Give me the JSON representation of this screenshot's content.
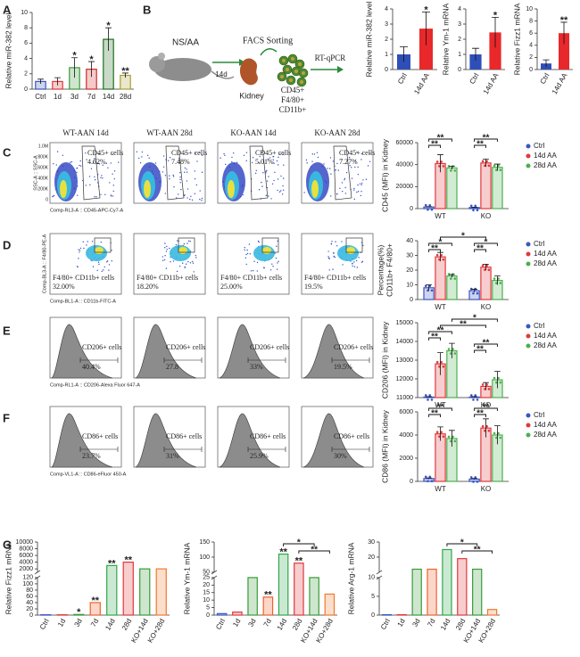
{
  "panels": [
    "A",
    "B",
    "C",
    "D",
    "E",
    "F",
    "G"
  ],
  "schematic": {
    "treatment": "NS/AA",
    "time": "14d",
    "organ": "Kidney",
    "sorting": "FACS Sorting",
    "markers": [
      "CD45+",
      "F4/80+",
      "CD11b+"
    ],
    "assay": "RT-qPCR"
  },
  "flow": {
    "columns": [
      "WT-AAN 14d",
      "WT-AAN 28d",
      "KO-AAN 14d",
      "KO-AAN 28d"
    ],
    "rows": [
      {
        "x_axis": "Comp-RL3-A :: CD45-APC-Cy7-A",
        "y_axis": "SSC-A :: SSC-A",
        "y_tick_labels": [
          "1.0M",
          "800K",
          "600K",
          "400K",
          "200K",
          "0"
        ],
        "gate_label": "CD45+ cells",
        "gate_values": [
          "4.62%",
          "7.48%",
          "5.01%",
          "7.27%"
        ]
      },
      {
        "x_axis": "Comp-BL1-A :: CD11b-FITC-A",
        "y_axis": "Comp-BL3-A :: F4/80-PE-A",
        "gate_label": "F4/80+ CD11b+ cells",
        "gate_values": [
          "32.00%",
          "18.20%",
          "25.00%",
          "19.5%"
        ]
      },
      {
        "x_axis": "Comp-RL1-A :: CD206-Alexa Fluor 647-A",
        "gate_label": "CD206+ cells",
        "gate_values": [
          "40.4%",
          "27.8",
          "33%",
          "19.5%"
        ]
      },
      {
        "x_axis": "Comp-VL1-A :: CD86-eFluor 450-A",
        "gate_label": "CD86+ cells",
        "gate_values": [
          "23.7%",
          "31%",
          "25.9%",
          "30%"
        ]
      }
    ]
  },
  "chart_data": [
    {
      "type": "bar",
      "bar_style": "outline",
      "ylabel": "Relative miR-382 level",
      "categories": [
        "Ctrl",
        "1d",
        "3d",
        "7d",
        "14d",
        "28d"
      ],
      "values": [
        1,
        1,
        2.8,
        2.6,
        6.5,
        1.8
      ],
      "errors": [
        0.3,
        0.5,
        1.3,
        1.0,
        1.5,
        0.3
      ],
      "colors": [
        "#3b55c0",
        "#e0393b",
        "#3a9b3a",
        "#d42a2a",
        "#1f6e1f",
        "#a8a032"
      ],
      "sig": [
        null,
        null,
        "*",
        "*",
        "*",
        "**"
      ],
      "ylim": [
        0,
        10
      ],
      "yticks": [
        0,
        2,
        4,
        6,
        8,
        10
      ]
    },
    {
      "type": "bar",
      "bar_style": "solid",
      "ylabel": "Relative miR-382 level",
      "categories": [
        "Ctrl",
        "14d AA"
      ],
      "values": [
        1,
        2.7
      ],
      "errors": [
        0.5,
        1.1
      ],
      "colors": [
        "#2f4fb8",
        "#e8282a"
      ],
      "sig": [
        null,
        "*"
      ],
      "ylim": [
        0,
        4
      ],
      "yticks": [
        0,
        1,
        2,
        3,
        4
      ]
    },
    {
      "type": "bar",
      "bar_style": "solid",
      "ylabel": "Relative Ym-1 mRNA",
      "categories": [
        "Ctrl",
        "14d AA"
      ],
      "values": [
        1,
        2.45
      ],
      "errors": [
        0.4,
        1.0
      ],
      "colors": [
        "#2f4fb8",
        "#e8282a"
      ],
      "sig": [
        null,
        "*"
      ],
      "ylim": [
        0,
        4
      ],
      "yticks": [
        0,
        1,
        2,
        3,
        4
      ]
    },
    {
      "type": "bar",
      "bar_style": "solid",
      "ylabel": "Relative Fizz1 mRNA",
      "categories": [
        "Ctrl",
        "14d AA"
      ],
      "values": [
        1,
        6
      ],
      "errors": [
        0.6,
        1.8
      ],
      "colors": [
        "#2f4fb8",
        "#e8282a"
      ],
      "sig": [
        null,
        "**"
      ],
      "ylim": [
        0,
        10
      ],
      "yticks": [
        0,
        2,
        4,
        6,
        8,
        10
      ]
    },
    {
      "type": "bar",
      "bar_style": "outline",
      "ylabel": "CD45 (MFI) in Kidney",
      "categories": [
        "WT",
        "KO"
      ],
      "series": [
        {
          "name": "Ctrl",
          "color": "#3b55c0",
          "values": [
            1500,
            1000
          ],
          "errors": [
            300,
            300
          ]
        },
        {
          "name": "14d AA",
          "color": "#e0393b",
          "values": [
            41000,
            41500
          ],
          "errors": [
            8000,
            3500
          ]
        },
        {
          "name": "28d AA",
          "color": "#4caf50",
          "values": [
            37000,
            37500
          ],
          "errors": [
            1500,
            3000
          ]
        }
      ],
      "ylim": [
        0,
        60000
      ],
      "yticks": [
        0,
        20000,
        40000,
        60000
      ],
      "brackets": [
        "**",
        "**",
        "**",
        "**"
      ]
    },
    {
      "type": "bar",
      "bar_style": "outline",
      "ylabel": [
        "Percentage(%)",
        "CD11b+ F4/80+"
      ],
      "categories": [
        "WT",
        "KO"
      ],
      "series": [
        {
          "name": "Ctrl",
          "color": "#3b55c0",
          "values": [
            8,
            6
          ],
          "errors": [
            2,
            1
          ]
        },
        {
          "name": "14d AA",
          "color": "#e0393b",
          "values": [
            29,
            22
          ],
          "errors": [
            3,
            2
          ]
        },
        {
          "name": "28d AA",
          "color": "#4caf50",
          "values": [
            16,
            13
          ],
          "errors": [
            1,
            3
          ]
        }
      ],
      "ylim": [
        0,
        40
      ],
      "yticks": [
        0,
        10,
        20,
        30,
        40
      ],
      "brackets": [
        "**",
        "*",
        "*",
        "**",
        "*"
      ]
    },
    {
      "type": "bar",
      "bar_style": "outline",
      "ylabel": "CD206 (MFI) in Kidney",
      "categories": [
        "WT",
        "KO"
      ],
      "series": [
        {
          "name": "Ctrl",
          "color": "#3b55c0",
          "values": [
            11030,
            11030
          ],
          "errors": [
            20,
            20
          ]
        },
        {
          "name": "14d AA",
          "color": "#e0393b",
          "values": [
            12800,
            11600
          ],
          "errors": [
            600,
            200
          ]
        },
        {
          "name": "28d AA",
          "color": "#4caf50",
          "values": [
            13500,
            11950
          ],
          "errors": [
            400,
            450
          ]
        }
      ],
      "ylim": [
        11000,
        15000
      ],
      "yticks": [
        11000,
        12000,
        13000,
        14000,
        15000
      ],
      "brackets": [
        "**",
        "**",
        "*",
        "**",
        "**",
        "**"
      ]
    },
    {
      "type": "bar",
      "bar_style": "outline",
      "ylabel": "CD86 (MFI) in Kidney",
      "categories": [
        "WT",
        "KO"
      ],
      "series": [
        {
          "name": "Ctrl",
          "color": "#3b55c0",
          "values": [
            250,
            200
          ],
          "errors": [
            50,
            50
          ]
        },
        {
          "name": "14d AA",
          "color": "#e0393b",
          "values": [
            4100,
            4600
          ],
          "errors": [
            600,
            800
          ]
        },
        {
          "name": "28d AA",
          "color": "#4caf50",
          "values": [
            3700,
            4000
          ],
          "errors": [
            700,
            800
          ]
        }
      ],
      "ylim": [
        0,
        6000
      ],
      "yticks": [
        0,
        2000,
        4000,
        6000
      ],
      "brackets": [
        "**",
        "**",
        "**",
        "**"
      ]
    },
    {
      "type": "bar",
      "bar_style": "outline",
      "ylabel": "Relative Fizz1 mRNA",
      "categories": [
        "Ctrl",
        "1d",
        "3d",
        "7d",
        "14d",
        "28d",
        "KO+14d",
        "KO+28d"
      ],
      "values": [
        1,
        1,
        2,
        40,
        3000,
        4000,
        2000,
        2000
      ],
      "colors": [
        "#3b55c0",
        "#e0393b",
        "#3a9b3a",
        "#f0602a",
        "#2fa84a",
        "#e0393b",
        "#3a9b3a",
        "#f07a30"
      ],
      "sig": [
        null,
        null,
        "*",
        "**",
        "**",
        "**",
        null,
        null
      ],
      "axis_segments": [
        {
          "ylim": [
            0,
            120
          ],
          "yticks": [
            0,
            20,
            40,
            60,
            80,
            100,
            120
          ]
        },
        {
          "ylim": [
            1000,
            10000
          ],
          "yticks": [
            2000,
            4000,
            6000,
            8000,
            10000
          ]
        }
      ]
    },
    {
      "type": "bar",
      "bar_style": "outline",
      "ylabel": "Relative Ym-1 mRNA",
      "categories": [
        "Ctrl",
        "1d",
        "3d",
        "7d",
        "14d",
        "28d",
        "KO+14d",
        "KO+28d"
      ],
      "values": [
        1,
        2,
        25,
        12,
        110,
        80,
        25,
        14
      ],
      "colors": [
        "#3b55c0",
        "#e0393b",
        "#3a9b3a",
        "#f0602a",
        "#2fa84a",
        "#e0393b",
        "#3a9b3a",
        "#f07a30"
      ],
      "sig": [
        null,
        null,
        null,
        "**",
        "**",
        "**",
        null,
        null
      ],
      "brackets": [
        "*",
        "**"
      ],
      "axis_segments": [
        {
          "ylim": [
            0,
            25
          ],
          "yticks": [
            0,
            5,
            10,
            15,
            20,
            25
          ]
        },
        {
          "ylim": [
            50,
            150
          ],
          "yticks": [
            50,
            100,
            150
          ]
        }
      ]
    },
    {
      "type": "bar",
      "bar_style": "outline",
      "ylabel": "Relative Arg-1 mRNA",
      "categories": [
        "Ctrl",
        "1d",
        "3d",
        "7d",
        "14d",
        "28d",
        "KO+14d",
        "KO+28d"
      ],
      "values": [
        0.1,
        0.1,
        12,
        12,
        25,
        19,
        12,
        1.5
      ],
      "colors": [
        "#3b55c0",
        "#e0393b",
        "#3a9b3a",
        "#f0602a",
        "#2fa84a",
        "#e0393b",
        "#3a9b3a",
        "#f07a30"
      ],
      "brackets": [
        "*",
        "**"
      ],
      "axis_segments": [
        {
          "ylim": [
            0,
            10
          ],
          "yticks": [
            0,
            5,
            10
          ]
        },
        {
          "ylim": [
            10,
            30
          ],
          "yticks": [
            20,
            30
          ]
        }
      ]
    }
  ]
}
